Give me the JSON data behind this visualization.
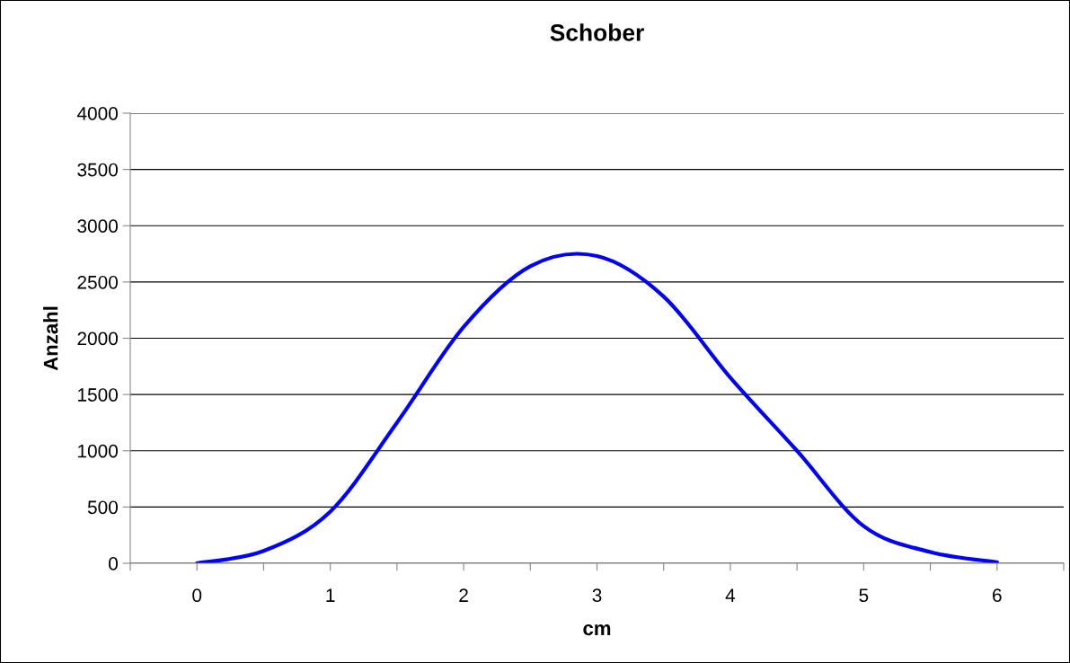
{
  "chart_data": {
    "type": "line",
    "title": "Schober",
    "xlabel": "cm",
    "ylabel": "Anzahl",
    "x": [
      0,
      0.5,
      1,
      1.5,
      2,
      2.5,
      3,
      3.5,
      4,
      4.5,
      5,
      5.5,
      6
    ],
    "series": [
      {
        "color": "#0000ff",
        "values": [
          0,
          110,
          460,
          1250,
          2100,
          2640,
          2730,
          2370,
          1650,
          1000,
          330,
          100,
          10
        ]
      }
    ],
    "xlim": [
      -0.5,
      6.5
    ],
    "xticks": [
      {
        "value": -0.5,
        "label": null
      },
      0,
      {
        "value": 0.5,
        "label": null
      },
      1,
      {
        "value": 1.5,
        "label": null
      },
      2,
      {
        "value": 2.5,
        "label": null
      },
      3,
      {
        "value": 3.5,
        "label": null
      },
      4,
      {
        "value": 4.5,
        "label": null
      },
      5,
      {
        "value": 5.5,
        "label": null
      },
      6,
      {
        "value": 6.5,
        "label": null
      }
    ],
    "ylim": [
      0,
      4000
    ],
    "yticks": [
      0,
      500,
      1000,
      1500,
      2000,
      2500,
      3000,
      3500,
      4000
    ],
    "grid": "y",
    "legend": false,
    "marker": "none",
    "line_style": "solid"
  }
}
